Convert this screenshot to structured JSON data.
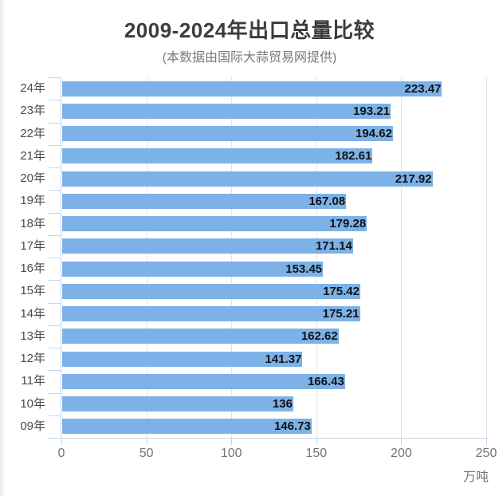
{
  "chart_data": {
    "type": "bar",
    "orientation": "horizontal",
    "title": "2009-2024年出口总量比较",
    "subtitle": "(本数据由国际大蒜贸易网提供)",
    "unit_label": "万吨",
    "xlabel": "万吨",
    "ylabel": "",
    "xlim": [
      0,
      250
    ],
    "x_tick_labels": [
      "0",
      "50",
      "100",
      "150",
      "200",
      "250"
    ],
    "x_tick_values": [
      0,
      50,
      100,
      150,
      200,
      250
    ],
    "grid": "vertical-only",
    "legend": "none",
    "categories": [
      "24年",
      "23年",
      "22年",
      "21年",
      "20年",
      "19年",
      "18年",
      "17年",
      "16年",
      "15年",
      "14年",
      "13年",
      "12年",
      "11年",
      "10年",
      "09年"
    ],
    "values": [
      223.47,
      193.21,
      194.62,
      182.61,
      217.92,
      167.08,
      179.28,
      171.14,
      153.45,
      175.42,
      175.21,
      162.62,
      141.37,
      166.43,
      136,
      146.73
    ],
    "value_labels": [
      "223.47",
      "193.21",
      "194.62",
      "182.61",
      "217.92",
      "167.08",
      "179.28",
      "171.14",
      "153.45",
      "175.42",
      "175.21",
      "162.62",
      "141.37",
      "166.43",
      "136",
      "146.73"
    ],
    "colors": {
      "bar": "#7CB2E8",
      "axis": "#C3D5EA",
      "grid": "#E4E4E4",
      "title": "#3C3C3C",
      "subtitle": "#7A7A7A",
      "tick_label": "#757575",
      "category_label": "#4A4A4A",
      "value_label": "#111111",
      "background": "#FFFFFF"
    }
  }
}
